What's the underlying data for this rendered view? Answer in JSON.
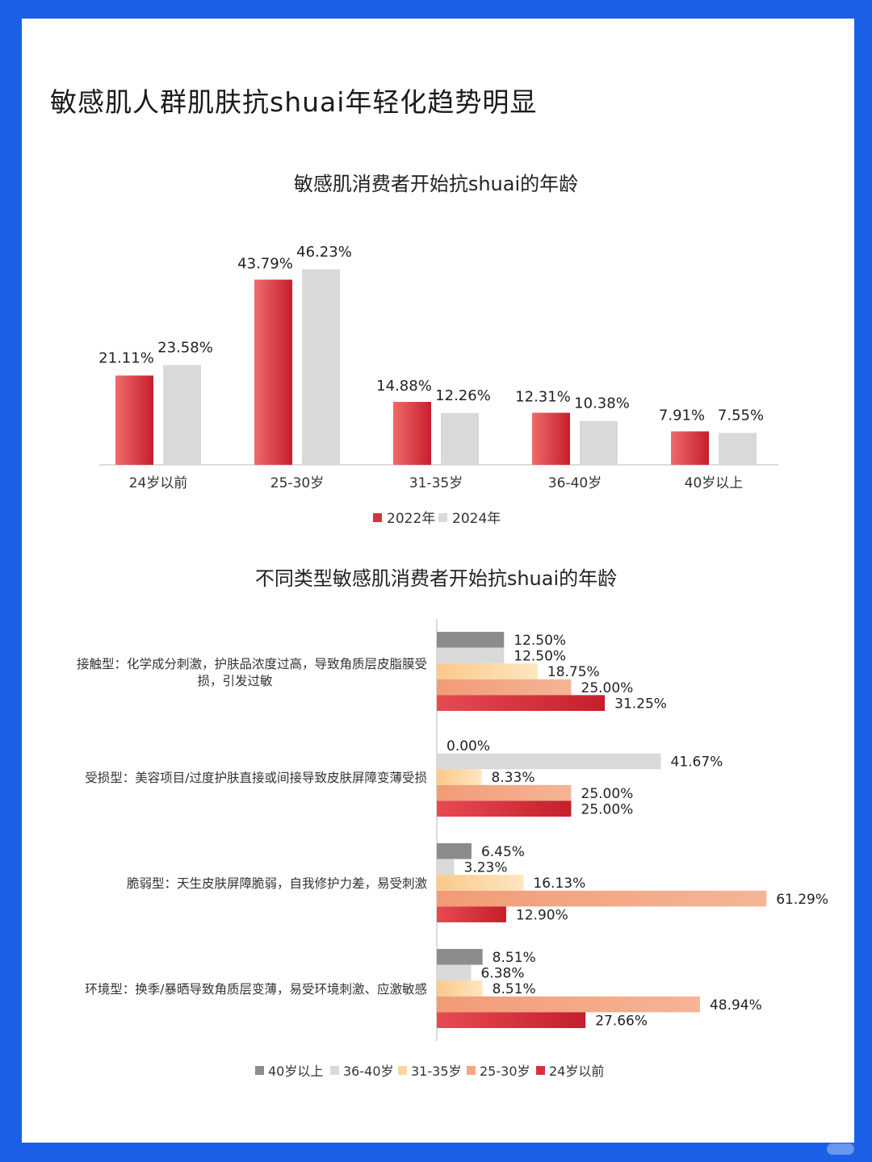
{
  "title": "敏感肌人群肌肤抗shuai年轻化趋势明显",
  "colors": {
    "frame": "#1a5fe6",
    "red": "#d6323e",
    "gray": "#d9d9d9",
    "dark_gray": "#8c8c8c",
    "light_orange": "#fbd59a",
    "orange": "#f3a882"
  },
  "chart_data": [
    {
      "type": "bar",
      "title": "敏感肌消费者开始抗shuai的年龄",
      "categories": [
        "24岁以前",
        "25-30岁",
        "31-35岁",
        "36-40岁",
        "40岁以上"
      ],
      "series": [
        {
          "name": "2022年",
          "values": [
            21.11,
            43.79,
            14.88,
            12.31,
            7.91
          ],
          "labels": [
            "21.11%",
            "43.79%",
            "14.88%",
            "12.31%",
            "7.91%"
          ]
        },
        {
          "name": "2024年",
          "values": [
            23.58,
            46.23,
            12.26,
            10.38,
            7.55
          ],
          "labels": [
            "23.58%",
            "46.23%",
            "12.26%",
            "10.38%",
            "7.55%"
          ]
        }
      ],
      "ylim": [
        0,
        55
      ],
      "grid": false,
      "legend": "bottom"
    },
    {
      "type": "bar",
      "orientation": "horizontal",
      "title": "不同类型敏感肌消费者开始抗shuai的年龄",
      "categories": [
        "接触型：化学成分刺激，护肤品浓度过高，导致角质层皮脂膜受损，引发过敏",
        "受损型：美容项目/过度护肤直接或间接导致皮肤屏障变薄受损",
        "脆弱型：天生皮肤屏障脆弱，自我修护力差，易受刺激",
        "环境型：换季/暴晒导致角质层变薄，易受环境刺激、应激敏感"
      ],
      "category_lines": [
        [
          "接触型：化学成分刺激，护肤品浓度过高，导致角质层皮脂膜受",
          "损，引发过敏"
        ],
        [
          "受损型：美容项目/过度护肤直接或间接导致皮肤屏障变薄受损"
        ],
        [
          "脆弱型：天生皮肤屏障脆弱，自我修护力差，易受刺激"
        ],
        [
          "环境型：换季/暴晒导致角质层变薄，易受环境刺激、应激敏感"
        ]
      ],
      "series": [
        {
          "name": "40岁以上",
          "values": [
            12.5,
            0.0,
            6.45,
            8.51
          ],
          "labels": [
            "12.50%",
            "0.00%",
            "6.45%",
            "8.51%"
          ]
        },
        {
          "name": "36-40岁",
          "values": [
            12.5,
            41.67,
            3.23,
            6.38
          ],
          "labels": [
            "12.50%",
            "41.67%",
            "3.23%",
            "6.38%"
          ]
        },
        {
          "name": "31-35岁",
          "values": [
            18.75,
            8.33,
            16.13,
            8.51
          ],
          "labels": [
            "18.75%",
            "8.33%",
            "16.13%",
            "8.51%"
          ]
        },
        {
          "name": "25-30岁",
          "values": [
            25.0,
            25.0,
            61.29,
            48.94
          ],
          "labels": [
            "25.00%",
            "25.00%",
            "61.29%",
            "48.94%"
          ]
        },
        {
          "name": "24岁以前",
          "values": [
            31.25,
            25.0,
            12.9,
            27.66
          ],
          "labels": [
            "31.25%",
            "25.00%",
            "12.90%",
            "27.66%"
          ]
        }
      ],
      "xlim": [
        0,
        62
      ],
      "grid": false,
      "legend": "bottom"
    }
  ]
}
